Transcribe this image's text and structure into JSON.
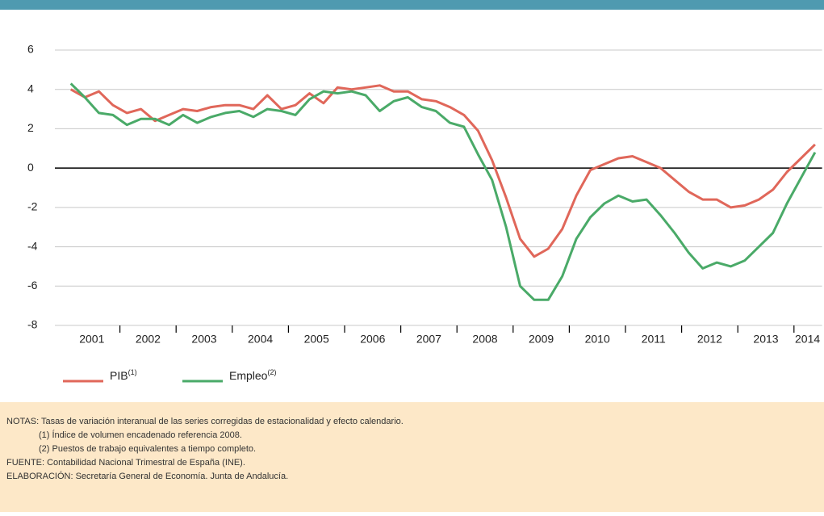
{
  "chart_data": {
    "type": "line",
    "categories": [
      "2001",
      null,
      null,
      null,
      "2002",
      null,
      null,
      null,
      "2003",
      null,
      null,
      null,
      "2004",
      null,
      null,
      null,
      "2005",
      null,
      null,
      null,
      "2006",
      null,
      null,
      null,
      "2007",
      null,
      null,
      null,
      "2008",
      null,
      null,
      null,
      "2009",
      null,
      null,
      null,
      "2010",
      null,
      null,
      null,
      "2011",
      null,
      null,
      null,
      "2012",
      null,
      null,
      null,
      "2013",
      null,
      null,
      null,
      "2014",
      null
    ],
    "series": [
      {
        "name": "PIB",
        "superscript": "(1)",
        "color": "#e0675a",
        "values": [
          4.0,
          3.6,
          3.9,
          3.2,
          2.8,
          3.0,
          2.4,
          2.7,
          3.0,
          2.9,
          3.1,
          3.2,
          3.2,
          3.0,
          3.7,
          3.0,
          3.2,
          3.8,
          3.3,
          4.1,
          4.0,
          4.1,
          4.2,
          3.9,
          3.9,
          3.5,
          3.4,
          3.1,
          2.7,
          1.9,
          0.4,
          -1.5,
          -3.6,
          -4.5,
          -4.1,
          -3.1,
          -1.4,
          -0.1,
          0.2,
          0.5,
          0.6,
          0.3,
          0.0,
          -0.6,
          -1.2,
          -1.6,
          -1.6,
          -2.0,
          -1.9,
          -1.6,
          -1.1,
          -0.2,
          0.5,
          1.2
        ]
      },
      {
        "name": "Empleo",
        "superscript": "(2)",
        "color": "#4aaa68",
        "values": [
          4.3,
          3.6,
          2.8,
          2.7,
          2.2,
          2.5,
          2.5,
          2.2,
          2.7,
          2.3,
          2.6,
          2.8,
          2.9,
          2.6,
          3.0,
          2.9,
          2.7,
          3.5,
          3.9,
          3.8,
          3.9,
          3.7,
          2.9,
          3.4,
          3.6,
          3.1,
          2.9,
          2.3,
          2.1,
          0.7,
          -0.6,
          -3.0,
          -6.0,
          -6.7,
          -6.7,
          -5.5,
          -3.6,
          -2.5,
          -1.8,
          -1.4,
          -1.7,
          -1.6,
          -2.4,
          -3.3,
          -4.3,
          -5.1,
          -4.8,
          -5.0,
          -4.7,
          -4.0,
          -3.3,
          -1.8,
          -0.5,
          0.8
        ]
      }
    ],
    "ylim": [
      -8,
      6
    ],
    "yticks": [
      -8,
      -6,
      -4,
      -2,
      0,
      2,
      4,
      6
    ],
    "grid": true
  },
  "notes": [
    "NOTAS: Tasas de variación interanual de las series corregidas de estacionalidad y efecto calendario.",
    "(1) Índice de volumen encadenado referencia 2008.",
    "(2) Puestos de trabajo equivalentes a tiempo completo.",
    "FUENTE: Contabilidad Nacional Trimestral de España (INE).",
    "ELABORACIÓN: Secretaría General de Economía. Junta de Andalucía."
  ]
}
